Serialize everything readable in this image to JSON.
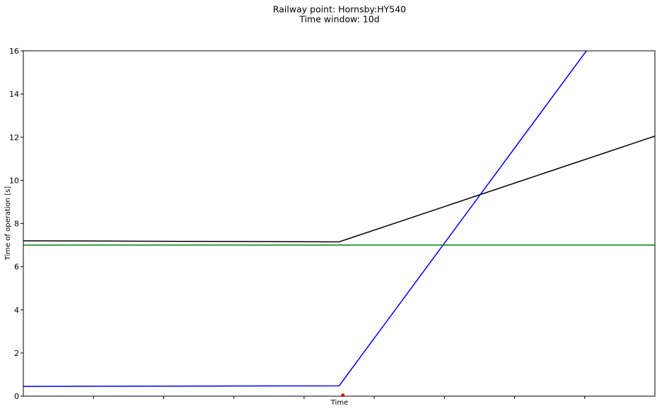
{
  "chart_data": {
    "type": "line",
    "title_lines": [
      "Railway point: Hornsby:HY540",
      "Time window: 10d"
    ],
    "xlabel": "Time",
    "ylabel": "Time of operation [s]",
    "ylim": [
      0,
      16
    ],
    "xlim": [
      0,
      1
    ],
    "yticks": [
      "0",
      "2",
      "4",
      "6",
      "8",
      "10",
      "12",
      "14",
      "16"
    ],
    "xticks_count": 8,
    "grid": false,
    "series": [
      {
        "color": "#000000",
        "points": [
          [
            0,
            7.2
          ],
          [
            0.5,
            7.15
          ],
          [
            1,
            12.05
          ]
        ]
      },
      {
        "color": "#0000ff",
        "points": [
          [
            0,
            0.45
          ],
          [
            0.5,
            0.48
          ],
          [
            0.8915,
            16
          ]
        ]
      },
      {
        "color": "#008000",
        "points": [
          [
            0,
            7.0
          ],
          [
            1,
            7.0
          ]
        ]
      }
    ],
    "markers": [
      {
        "color": "#ff0000",
        "x": 0.506,
        "y": 0.05
      }
    ]
  }
}
